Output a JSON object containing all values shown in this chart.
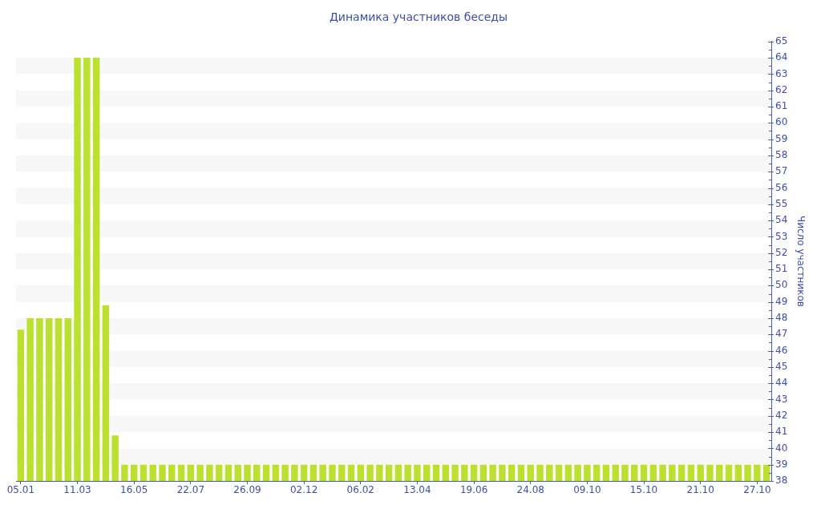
{
  "chart_data": {
    "type": "bar",
    "title": "Динамика участников беседы",
    "ylabel": "Число участников",
    "categories": [
      "05.01",
      null,
      null,
      null,
      null,
      null,
      "11.03",
      null,
      null,
      null,
      null,
      null,
      "16.05",
      null,
      null,
      null,
      null,
      null,
      "22.07",
      null,
      null,
      null,
      null,
      null,
      "26.09",
      null,
      null,
      null,
      null,
      null,
      "02.12",
      null,
      null,
      null,
      null,
      null,
      "06.02",
      null,
      null,
      null,
      null,
      null,
      "13.04",
      null,
      null,
      null,
      null,
      null,
      "19.06",
      null,
      null,
      null,
      null,
      null,
      "24.08",
      null,
      null,
      null,
      null,
      null,
      "09.10",
      null,
      null,
      null,
      null,
      null,
      "15.10",
      null,
      null,
      null,
      null,
      null,
      "21.10",
      null,
      null,
      null,
      null,
      null,
      "27.10",
      null
    ],
    "values": [
      47.3,
      48,
      48,
      48,
      48,
      48,
      64,
      64,
      64,
      48.8,
      40.8,
      39,
      39,
      39,
      39,
      39,
      39,
      39,
      39,
      39,
      39,
      39,
      39,
      39,
      39,
      39,
      39,
      39,
      39,
      39,
      39,
      39,
      39,
      39,
      39,
      39,
      39,
      39,
      39,
      39,
      39,
      39,
      39,
      39,
      39,
      39,
      39,
      39,
      39,
      39,
      39,
      39,
      39,
      39,
      39,
      39,
      39,
      39,
      39,
      39,
      39,
      39,
      39,
      39,
      39,
      39,
      39,
      39,
      39,
      39,
      39,
      39,
      39,
      39,
      39,
      39,
      39,
      39,
      39,
      39
    ],
    "color": "#bbe02f",
    "ylim": [
      38,
      65
    ],
    "yticks": [
      38,
      {
        "value": 38.5,
        "label": null
      },
      39,
      {
        "value": 39.5,
        "label": null
      },
      40,
      {
        "value": 40.5,
        "label": null
      },
      41,
      {
        "value": 41.5,
        "label": null
      },
      42,
      {
        "value": 42.5,
        "label": null
      },
      43,
      {
        "value": 43.5,
        "label": null
      },
      44,
      {
        "value": 44.5,
        "label": null
      },
      45,
      {
        "value": 45.5,
        "label": null
      },
      46,
      {
        "value": 46.5,
        "label": null
      },
      47,
      {
        "value": 47.5,
        "label": null
      },
      48,
      {
        "value": 48.5,
        "label": null
      },
      49,
      {
        "value": 49.5,
        "label": null
      },
      50,
      {
        "value": 50.5,
        "label": null
      },
      51,
      {
        "value": 51.5,
        "label": null
      },
      52,
      {
        "value": 52.5,
        "label": null
      },
      53,
      {
        "value": 53.5,
        "label": null
      },
      54,
      {
        "value": 54.5,
        "label": null
      },
      55,
      {
        "value": 55.5,
        "label": null
      },
      56,
      {
        "value": 56.5,
        "label": null
      },
      57,
      {
        "value": 57.5,
        "label": null
      },
      58,
      {
        "value": 58.5,
        "label": null
      },
      59,
      {
        "value": 59.5,
        "label": null
      },
      60,
      {
        "value": 60.5,
        "label": null
      },
      61,
      {
        "value": 61.5,
        "label": null
      },
      62,
      {
        "value": 62.5,
        "label": null
      },
      63,
      {
        "value": 63.5,
        "label": null
      },
      64,
      {
        "value": 64.5,
        "label": null
      },
      65
    ],
    "bands": [
      {
        "axis": "y",
        "from": 39,
        "to": 40,
        "color": "#f7f7f7"
      },
      {
        "axis": "y",
        "from": 41,
        "to": 42,
        "color": "#f7f7f7"
      },
      {
        "axis": "y",
        "from": 43,
        "to": 44,
        "color": "#f7f7f7"
      },
      {
        "axis": "y",
        "from": 45,
        "to": 46,
        "color": "#f7f7f7"
      },
      {
        "axis": "y",
        "from": 47,
        "to": 48,
        "color": "#f7f7f7"
      },
      {
        "axis": "y",
        "from": 49,
        "to": 50,
        "color": "#f7f7f7"
      },
      {
        "axis": "y",
        "from": 51,
        "to": 52,
        "color": "#f7f7f7"
      },
      {
        "axis": "y",
        "from": 53,
        "to": 54,
        "color": "#f7f7f7"
      },
      {
        "axis": "y",
        "from": 55,
        "to": 56,
        "color": "#f7f7f7"
      },
      {
        "axis": "y",
        "from": 57,
        "to": 58,
        "color": "#f7f7f7"
      },
      {
        "axis": "y",
        "from": 59,
        "to": 60,
        "color": "#f7f7f7"
      },
      {
        "axis": "y",
        "from": 61,
        "to": 62,
        "color": "#f7f7f7"
      },
      {
        "axis": "y",
        "from": 63,
        "to": 64,
        "color": "#f7f7f7"
      }
    ]
  }
}
